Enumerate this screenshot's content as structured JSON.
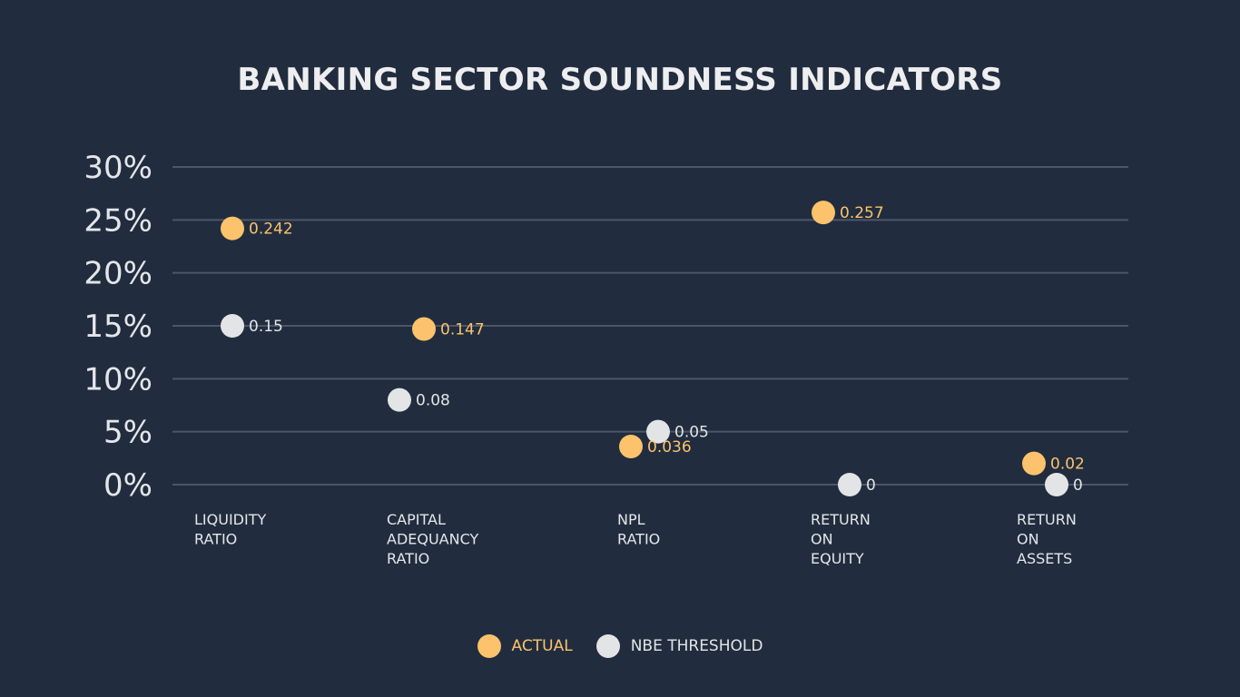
{
  "colors": {
    "background": "#212d3e",
    "gridline": "#4b5669",
    "actual": "#fcc26c",
    "threshold": "#e3e4e6",
    "text": "#e4e6ea",
    "title": "#eeeef0"
  },
  "chart_data": {
    "type": "scatter",
    "title": "BANKING SECTOR SOUNDNESS INDICATORS",
    "xlabel": "",
    "ylabel": "",
    "categories": [
      [
        "LIQUIDITY",
        "RATIO"
      ],
      [
        "CAPITAL",
        "ADEQUANCY",
        "RATIO"
      ],
      [
        "NPL",
        "RATIO"
      ],
      [
        "RETURN",
        "ON",
        "EQUITY"
      ],
      [
        "RETURN",
        "ON",
        "ASSETS"
      ]
    ],
    "ylim": [
      0,
      0.3
    ],
    "yticks": [
      0,
      0.05,
      0.1,
      0.15,
      0.2,
      0.25,
      0.3
    ],
    "ytick_labels": [
      "0%",
      "5%",
      "10%",
      "15%",
      "20%",
      "25%",
      "30%"
    ],
    "grid": true,
    "legend_position": "bottom-center",
    "series": [
      {
        "name": "ACTUAL",
        "color_key": "actual",
        "values": [
          0.242,
          0.147,
          0.036,
          0.257,
          0.02
        ],
        "labels": [
          "0.242",
          "0.147",
          "0.036",
          "0.257",
          "0.02"
        ]
      },
      {
        "name": "NBE THRESHOLD",
        "color_key": "threshold",
        "values": [
          0.15,
          0.08,
          0.05,
          0,
          0
        ],
        "labels": [
          "0.15",
          "0.08",
          "0.05",
          "0",
          "0"
        ]
      }
    ]
  }
}
